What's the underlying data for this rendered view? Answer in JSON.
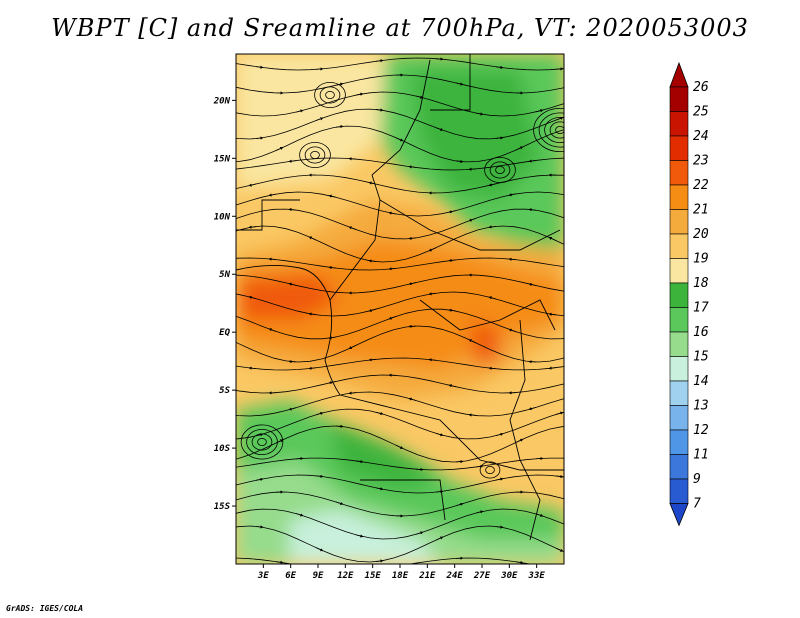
{
  "title": "WBPT [C] and Sreamline at 700hPa, VT: 2020053003",
  "credit": "GrADS: IGES/COLA",
  "map": {
    "lon_range": [
      0,
      36
    ],
    "lat_range": [
      -20,
      24
    ],
    "lat_ticks": [
      {
        "label": "20N",
        "value": 20
      },
      {
        "label": "15N",
        "value": 15
      },
      {
        "label": "10N",
        "value": 10
      },
      {
        "label": "5N",
        "value": 5
      },
      {
        "label": "EQ",
        "value": 0
      },
      {
        "label": "5S",
        "value": -5
      },
      {
        "label": "10S",
        "value": -10
      },
      {
        "label": "15S",
        "value": -15
      }
    ],
    "lon_ticks": [
      {
        "label": "3E",
        "value": 3
      },
      {
        "label": "6E",
        "value": 6
      },
      {
        "label": "9E",
        "value": 9
      },
      {
        "label": "12E",
        "value": 12
      },
      {
        "label": "15E",
        "value": 15
      },
      {
        "label": "18E",
        "value": 18
      },
      {
        "label": "21E",
        "value": 21
      },
      {
        "label": "24E",
        "value": 24
      },
      {
        "label": "27E",
        "value": 27
      },
      {
        "label": "30E",
        "value": 30
      },
      {
        "label": "33E",
        "value": 33
      }
    ]
  },
  "colorbar": {
    "levels": [
      {
        "label": "26",
        "color": "#a50000"
      },
      {
        "label": "25",
        "color": "#c81400"
      },
      {
        "label": "24",
        "color": "#e12d00"
      },
      {
        "label": "23",
        "color": "#f05a0a"
      },
      {
        "label": "22",
        "color": "#f58c14"
      },
      {
        "label": "21",
        "color": "#f5aa3c"
      },
      {
        "label": "20",
        "color": "#fac864"
      },
      {
        "label": "19",
        "color": "#fae6a0"
      },
      {
        "label": "18",
        "color": "#3cb43c"
      },
      {
        "label": "17",
        "color": "#5ac85a"
      },
      {
        "label": "16",
        "color": "#96dc8c"
      },
      {
        "label": "15",
        "color": "#c8f0dc"
      },
      {
        "label": "14",
        "color": "#a0d2f0"
      },
      {
        "label": "13",
        "color": "#78b4eb"
      },
      {
        "label": "12",
        "color": "#5096e6"
      },
      {
        "label": "11",
        "color": "#3c78dc"
      },
      {
        "label": "9",
        "color": "#285ad2"
      },
      {
        "label": "7",
        "color": "#1e46c8"
      }
    ]
  }
}
